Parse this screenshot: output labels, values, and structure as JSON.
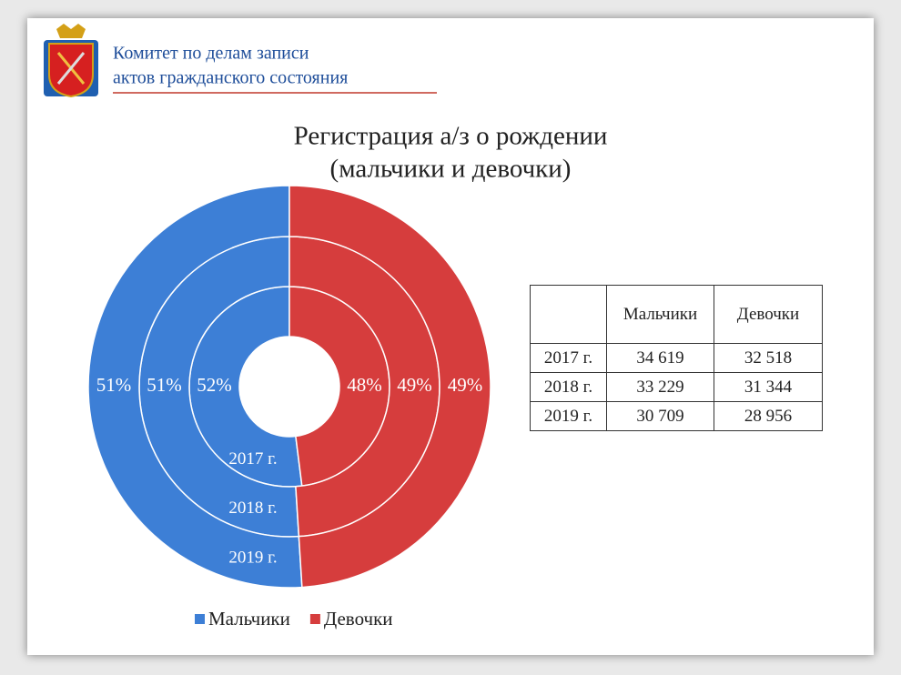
{
  "header": {
    "lines": [
      "Комитет по делам записи",
      "актов гражданского состояния"
    ]
  },
  "chart_data": {
    "type": "doughnut",
    "title": [
      "Регистрация а/з о рождении",
      "(мальчики и девочки)"
    ],
    "categories": [
      "Мальчики",
      "Девочки"
    ],
    "colors": [
      "#3d7fd6",
      "#d63d3d"
    ],
    "rings": [
      {
        "name": "2017 г.",
        "values": [
          52,
          48
        ],
        "value_labels": [
          "52%",
          "48%"
        ]
      },
      {
        "name": "2018 г.",
        "values": [
          51,
          49
        ],
        "value_labels": [
          "51%",
          "49%"
        ]
      },
      {
        "name": "2019 г.",
        "values": [
          51,
          49
        ],
        "value_labels": [
          "51%",
          "49%"
        ]
      }
    ],
    "legend": "bottom"
  },
  "table": {
    "header": [
      "Мальчики",
      "Девочки"
    ],
    "rows": [
      [
        "2017 г.",
        "34 619",
        "32 518"
      ],
      [
        "2018 г.",
        "33 229",
        "31 344"
      ],
      [
        "2019 г.",
        "30 709",
        "28 956"
      ]
    ]
  }
}
